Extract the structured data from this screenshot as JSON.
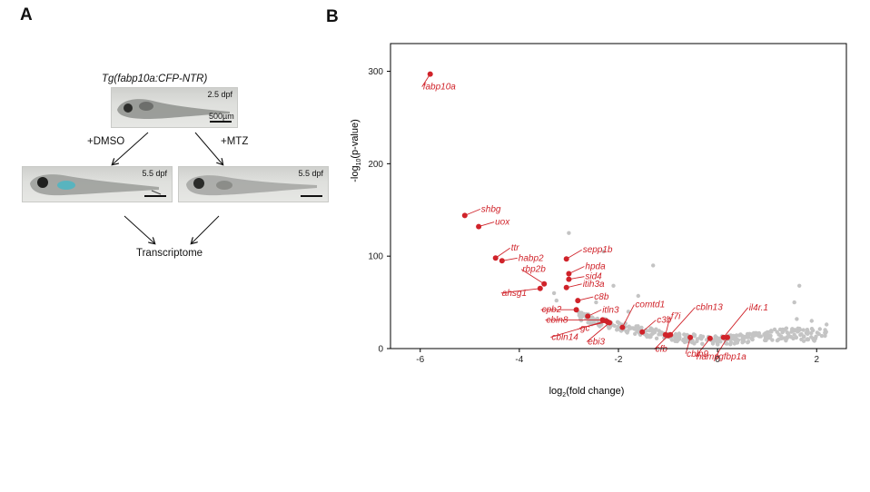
{
  "panel_a": {
    "letter": "A",
    "title": "Tg(fabp10a:CFP-NTR)",
    "top_image": {
      "stage": "2.5 dpf",
      "scale": "500µm"
    },
    "left_image": {
      "stage": "5.5 dpf"
    },
    "right_image": {
      "stage": "5.5 dpf"
    },
    "treatment_left": "+DMSO",
    "treatment_right": "+MTZ",
    "result": "Transcriptome"
  },
  "panel_b": {
    "letter": "B",
    "colors": {
      "highlight": "#d0232a",
      "background_points": "#c4c4c4",
      "axis": "#000000"
    }
  },
  "chart_data": {
    "type": "scatter",
    "xlabel": "log2(fold change)",
    "ylabel": "-log10(p-value)",
    "xlim": [
      -6.6,
      2.6
    ],
    "ylim": [
      0,
      330
    ],
    "x_ticks": [
      "-6",
      "-4",
      "-2",
      "0",
      "2"
    ],
    "y_ticks": [
      "0",
      "100",
      "200",
      "300"
    ],
    "grid": false,
    "highlighted_genes": [
      {
        "gene": "fabp10a",
        "x": -5.8,
        "y": 297
      },
      {
        "gene": "shbg",
        "x": -5.1,
        "y": 144
      },
      {
        "gene": "uox",
        "x": -4.82,
        "y": 132
      },
      {
        "gene": "ttr",
        "x": -4.48,
        "y": 98
      },
      {
        "gene": "habp2",
        "x": -4.35,
        "y": 95
      },
      {
        "gene": "sepp1b",
        "x": -3.05,
        "y": 97
      },
      {
        "gene": "hpda",
        "x": -3.0,
        "y": 81
      },
      {
        "gene": "sid4",
        "x": -3.0,
        "y": 75
      },
      {
        "gene": "rbp2b",
        "x": -3.5,
        "y": 70
      },
      {
        "gene": "itih3a",
        "x": -3.05,
        "y": 66
      },
      {
        "gene": "ahsg1",
        "x": -3.58,
        "y": 65
      },
      {
        "gene": "c8b",
        "x": -2.82,
        "y": 52
      },
      {
        "gene": "cpb2",
        "x": -2.85,
        "y": 42
      },
      {
        "gene": "itln3",
        "x": -2.62,
        "y": 35
      },
      {
        "gene": "cbln8",
        "x": -2.32,
        "y": 31
      },
      {
        "gene": "cbln14",
        "x": -2.25,
        "y": 30
      },
      {
        "gene": "gc",
        "x": -2.22,
        "y": 29
      },
      {
        "gene": "ebi3",
        "x": -2.18,
        "y": 28
      },
      {
        "gene": "comtd1",
        "x": -1.92,
        "y": 23
      },
      {
        "gene": "c3b",
        "x": -1.52,
        "y": 18
      },
      {
        "gene": "f7i",
        "x": -1.05,
        "y": 15
      },
      {
        "gene": "cfb",
        "x": -1.0,
        "y": 14
      },
      {
        "gene": "cbln13",
        "x": -0.95,
        "y": 15
      },
      {
        "gene": "cbln9",
        "x": -0.55,
        "y": 12
      },
      {
        "gene": "hamp",
        "x": -0.15,
        "y": 11
      },
      {
        "gene": "il4r.1",
        "x": 0.12,
        "y": 12
      },
      {
        "gene": "igfbp1a",
        "x": 0.2,
        "y": 12
      }
    ]
  }
}
